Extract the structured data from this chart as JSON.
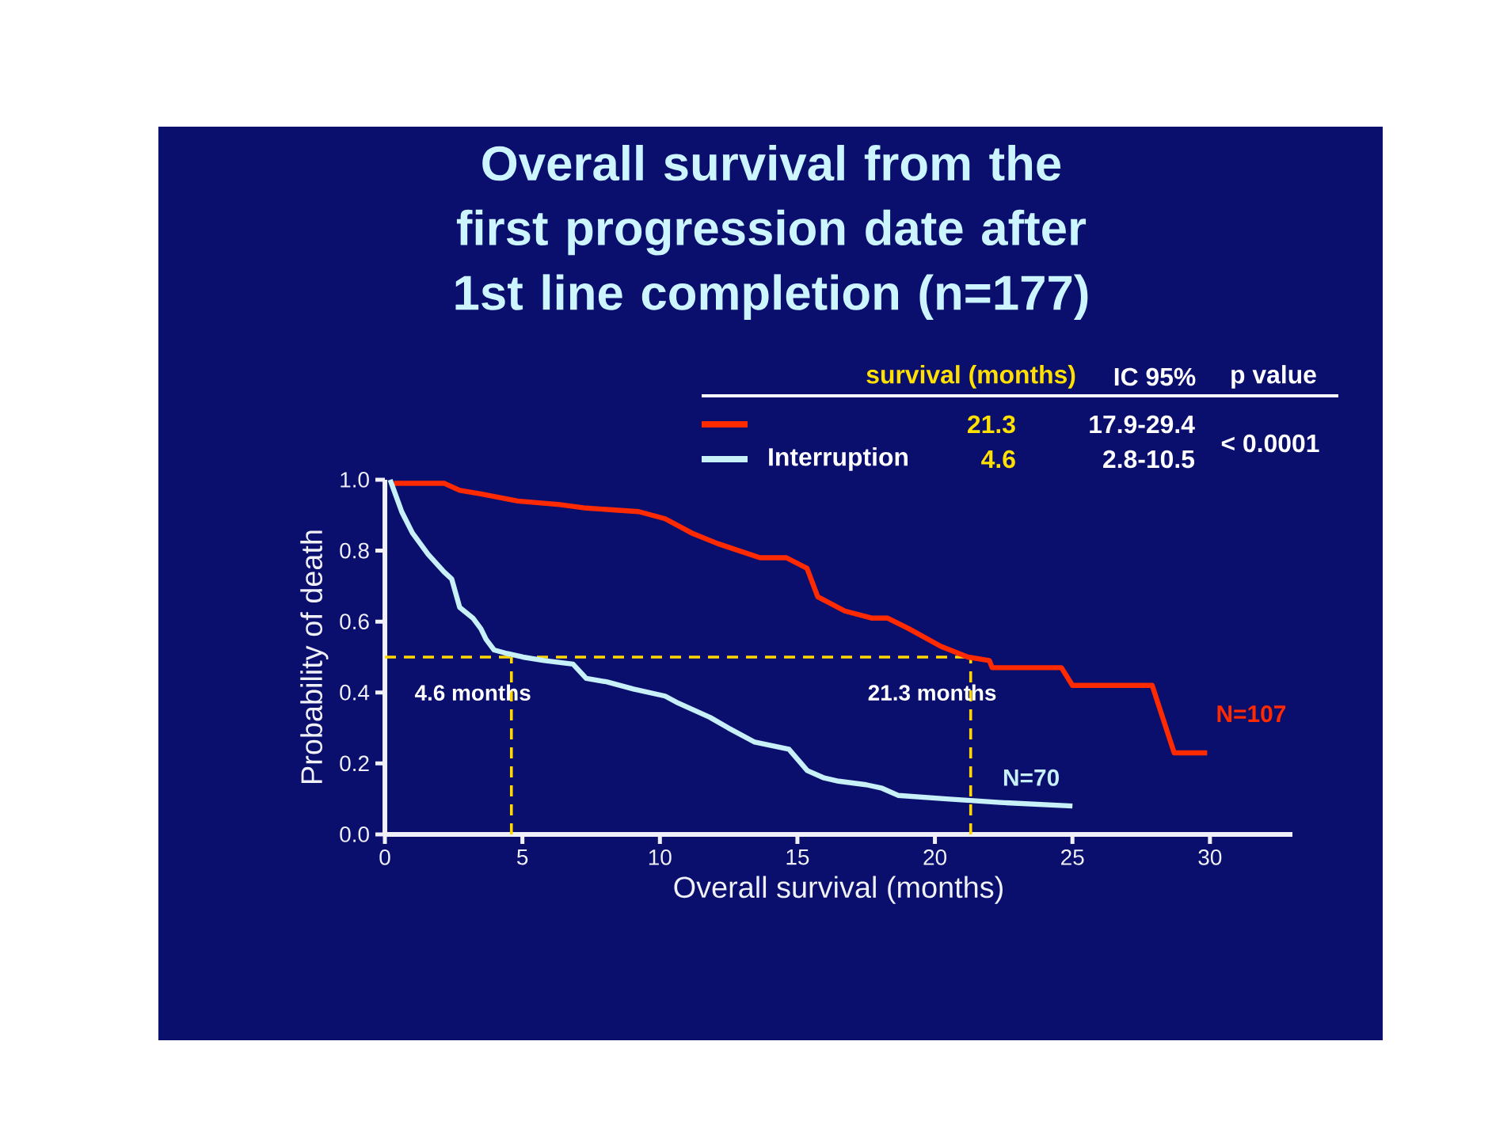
{
  "chart_data": {
    "type": "line",
    "title": "Overall survival from the first progression date after 1st line completion (n=177)",
    "xlabel": "Overall survival (months)",
    "ylabel": "Probability of death",
    "series": [
      {
        "color": "#ff2a00",
        "x": [
          0.33,
          2.15,
          2.72,
          3.49,
          4.83,
          6.36,
          7.32,
          9.23,
          10.19,
          11.15,
          12.1,
          13.64,
          14.6,
          15.35,
          15.74,
          16.72,
          17.69,
          18.27,
          19.05,
          20.22,
          21.2,
          21.98,
          22.08,
          24.6,
          25.0,
          27.9,
          28.7,
          29.9
        ],
        "values": [
          0.99,
          0.99,
          0.97,
          0.96,
          0.94,
          0.93,
          0.92,
          0.91,
          0.89,
          0.85,
          0.82,
          0.78,
          0.78,
          0.75,
          0.67,
          0.63,
          0.61,
          0.61,
          0.58,
          0.53,
          0.5,
          0.49,
          0.47,
          0.47,
          0.42,
          0.42,
          0.23,
          0.23
        ]
      },
      {
        "name": "Interruption",
        "color": "#c8f0f8",
        "x": [
          0.19,
          0.33,
          0.61,
          1.0,
          1.57,
          2.15,
          2.43,
          2.72,
          3.2,
          3.49,
          3.68,
          3.97,
          4.44,
          5.02,
          5.79,
          6.84,
          7.32,
          8.08,
          9.04,
          10.19,
          10.67,
          11.82,
          12.49,
          13.45,
          14.69,
          15.36,
          15.94,
          16.5,
          17.5,
          18.08,
          18.66,
          20.42,
          22.37,
          25.0
        ],
        "values": [
          1.0,
          0.97,
          0.91,
          0.85,
          0.79,
          0.74,
          0.72,
          0.64,
          0.61,
          0.58,
          0.55,
          0.52,
          0.51,
          0.5,
          0.49,
          0.48,
          0.44,
          0.43,
          0.41,
          0.39,
          0.37,
          0.33,
          0.3,
          0.26,
          0.24,
          0.18,
          0.16,
          0.15,
          0.14,
          0.13,
          0.11,
          0.1,
          0.09,
          0.08
        ]
      }
    ],
    "xlim": [
      0,
      33
    ],
    "ylim": [
      0,
      1
    ],
    "xticks": [
      0,
      5,
      10,
      15,
      20,
      25,
      30
    ],
    "yticks": [
      {
        "value": 0,
        "label": "0.0"
      },
      {
        "value": 0.2,
        "label": "0.2"
      },
      {
        "value": 0.4,
        "label": "0.4"
      },
      {
        "value": 0.6,
        "label": "0.6"
      },
      {
        "value": 0.8,
        "label": "0.8"
      },
      {
        "value": 1,
        "label": "1.0"
      }
    ],
    "ref_lines": [
      {
        "axis": "y",
        "value": 0.5,
        "color": "#ffd700",
        "line_style": "dashed"
      },
      {
        "axis": "x",
        "value": 4.6,
        "label": "4.6 months",
        "color": "#ffd700",
        "line_style": "dashed"
      },
      {
        "axis": "x",
        "value": 21.3,
        "label": "21.3 months",
        "color": "#ffd700",
        "line_style": "dashed"
      }
    ],
    "annotations": [
      "survival (months)",
      "IC 95%",
      "p value",
      "21.3",
      "17.9-29.4",
      "4.6",
      "2.8-10.5",
      "< 0.0001",
      "N=107",
      "N=70"
    ],
    "legend": "top right",
    "marker": "none",
    "line_style": "solid"
  }
}
